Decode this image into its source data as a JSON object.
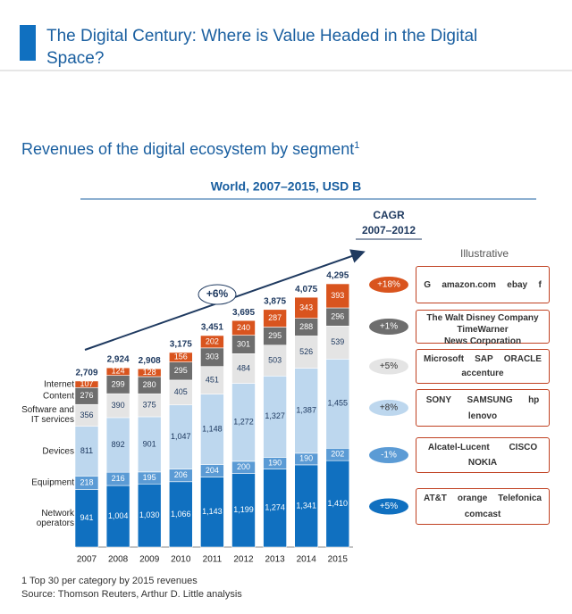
{
  "header": {
    "title": "The Digital Century: Where is Value Headed in the Digital Space?"
  },
  "chart_data": {
    "type": "stacked-bar",
    "title": "Revenues of the digital ecosystem by segment",
    "title_note": "1",
    "subtitle": "World, 2007–2015,  USD B",
    "cagr_title": "CAGR",
    "cagr_period": "2007–2012",
    "illustrative": "Illustrative",
    "annotation": "+6%",
    "categories": [
      "2007",
      "2008",
      "2009",
      "2010",
      "2011",
      "2012",
      "2013",
      "2014",
      "2015"
    ],
    "series": [
      {
        "name": "Network operators",
        "color": "#1070c0",
        "values": [
          941,
          1004,
          1030,
          1066,
          1143,
          1199,
          1274,
          1341,
          1410
        ],
        "value_labels": [
          "941",
          "1,004",
          "1,030",
          "1,066",
          "1,143",
          "1,199",
          "1,274",
          "1,341",
          "1,410"
        ],
        "cagr": "+5%",
        "logos": [
          "AT&T",
          "orange",
          "Telefonica",
          "comcast"
        ]
      },
      {
        "name": "Equipment",
        "color": "#5b9bd5",
        "values": [
          218,
          216,
          195,
          206,
          204,
          200,
          190,
          190,
          202
        ],
        "cagr": "-1%",
        "logos": [
          "Alcatel-Lucent",
          "CISCO",
          "NOKIA"
        ]
      },
      {
        "name": "Devices",
        "color": "#bdd7ee",
        "values": [
          811,
          892,
          901,
          1047,
          1148,
          1272,
          1327,
          1387,
          1455
        ],
        "value_labels": [
          "811",
          "892",
          "901",
          "1,047",
          "1,148",
          "1,272",
          "1,327",
          "1,387",
          "1,455"
        ],
        "cagr": "+8%",
        "logos": [
          "SONY",
          "SAMSUNG",
          "hp",
          "lenovo"
        ]
      },
      {
        "name": "Software and IT services",
        "color": "#e4e4e4",
        "values": [
          356,
          390,
          375,
          405,
          451,
          484,
          503,
          526,
          539
        ],
        "cagr": "+5%",
        "logos": [
          "Microsoft",
          "SAP",
          "ORACLE",
          "accenture"
        ]
      },
      {
        "name": "Content",
        "color": "#6e6e6e",
        "values": [
          276,
          299,
          280,
          295,
          303,
          301,
          295,
          288,
          296
        ],
        "cagr": "+1%",
        "logos": [
          "The Walt Disney Company",
          "TimeWarner",
          "News Corporation"
        ]
      },
      {
        "name": "Internet",
        "color": "#d9541e",
        "values": [
          107,
          124,
          128,
          156,
          202,
          240,
          287,
          343,
          393
        ],
        "cagr": "+18%",
        "logos": [
          "G",
          "amazon.com",
          "ebay",
          "f"
        ]
      }
    ],
    "totals": {
      "values": [
        2709,
        2924,
        2908,
        3175,
        3451,
        3695,
        3875,
        4075,
        4295
      ],
      "value_labels": [
        "2,709",
        "2,924",
        "2,908",
        "3,175",
        "3,451",
        "3,695",
        "3,875",
        "4,075",
        "4,295"
      ]
    }
  },
  "footnotes": [
    "1 Top 30 per category by 2015 revenues",
    "Source: Thomson Reuters, Arthur D. Little analysis"
  ]
}
